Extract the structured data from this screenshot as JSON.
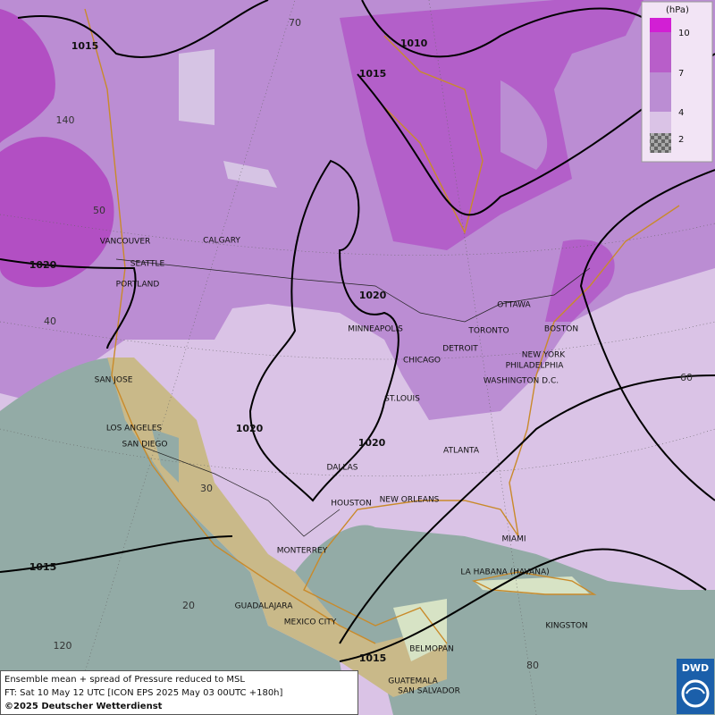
{
  "legend": {
    "unit": "(hPa)",
    "levels": [
      "10",
      "7",
      "4",
      "2"
    ]
  },
  "cities": [
    "VANCOUVER",
    "CALGARY",
    "SEATTLE",
    "PORTLAND",
    "SAN JOSE",
    "LOS ANGELES",
    "SAN DIEGO",
    "MINNEAPOLIS",
    "TORONTO",
    "OTTAWA",
    "DETROIT",
    "CHICAGO",
    "BOSTON",
    "NEW YORK",
    "PHILADELPHIA",
    "WASHINGTON D.C.",
    "ST.LOUIS",
    "ATLANTA",
    "DALLAS",
    "HOUSTON",
    "NEW ORLEANS",
    "MIAMI",
    "MONTERREY",
    "LA HABANA (HAVANA)",
    "GUADALAJARA",
    "MEXICO CITY",
    "KINGSTON",
    "BELMOPAN",
    "GUATEMALA",
    "SAN SALVADOR"
  ],
  "isobar_labels": [
    "1015",
    "1010",
    "1015",
    "1020",
    "1020",
    "1020",
    "1020",
    "1015",
    "1015"
  ],
  "grid_labels": [
    "70",
    "140",
    "50",
    "40",
    "60",
    "30",
    "20",
    "120",
    "80"
  ],
  "footer": {
    "line1": "Ensemble mean + spread of Pressure reduced to MSL",
    "line2": "FT: Sat 10 May 12 UTC [ICON EPS 2025 May 03 00UTC +180h]",
    "line3": "©2025 Deutscher Wetterdienst"
  },
  "logo": "DWD"
}
